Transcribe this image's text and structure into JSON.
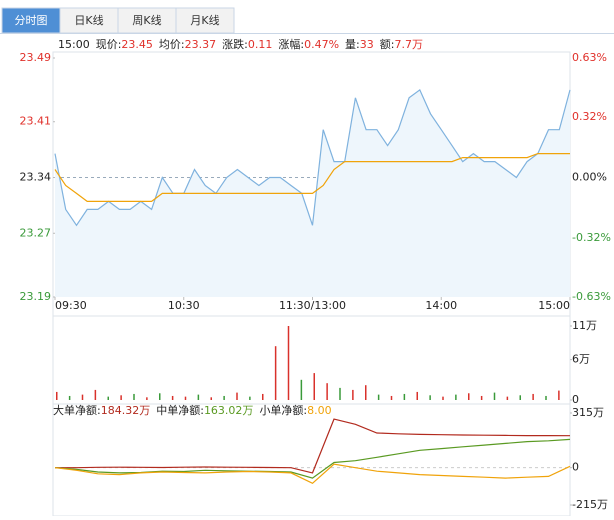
{
  "tabs": [
    "分时图",
    "日K线",
    "周K线",
    "月K线"
  ],
  "info": [
    {
      "label": "15:00"
    },
    {
      "label": "现价:",
      "value": "23.45"
    },
    {
      "label": "均价:",
      "value": "23.37"
    },
    {
      "label": "涨跌:",
      "value": "0.11"
    },
    {
      "label": "涨幅:",
      "value": "0.47%"
    },
    {
      "label": "量:",
      "value": "33"
    },
    {
      "label": "额:",
      "value": "7.7万"
    }
  ],
  "chart_data": [
    {
      "type": "line",
      "xlim": [
        0,
        240
      ],
      "xticks": [
        {
          "value": 0,
          "label": "09:30"
        },
        {
          "value": 60,
          "label": "10:30"
        },
        {
          "value": 120,
          "label": "11:30/13:00"
        },
        {
          "value": 180,
          "label": "14:00"
        },
        {
          "value": 240,
          "label": "15:00"
        }
      ],
      "ylim": [
        23.19,
        23.49
      ],
      "yticks": [
        23.19,
        23.27,
        23.34,
        23.41,
        23.49
      ],
      "y2lim": [
        -0.63,
        0.63
      ],
      "y2ticks": [
        {
          "value": -0.63,
          "label": "-0.63%"
        },
        {
          "value": -0.32,
          "label": "-0.32%"
        },
        {
          "value": 0,
          "label": "0.00%"
        },
        {
          "value": 0.32,
          "label": "0.32%"
        },
        {
          "value": 0.63,
          "label": "0.63%"
        }
      ],
      "x": [
        0,
        5,
        10,
        15,
        20,
        25,
        30,
        35,
        40,
        45,
        50,
        55,
        60,
        65,
        70,
        75,
        80,
        85,
        90,
        95,
        100,
        105,
        110,
        115,
        120,
        125,
        130,
        135,
        140,
        145,
        150,
        155,
        160,
        165,
        170,
        175,
        180,
        185,
        190,
        195,
        200,
        205,
        210,
        215,
        220,
        225,
        230,
        235,
        240
      ],
      "series": [
        {
          "color": "#7fb2de",
          "fill": "#eef6fc",
          "values": [
            23.37,
            23.3,
            23.28,
            23.3,
            23.3,
            23.31,
            23.3,
            23.3,
            23.31,
            23.3,
            23.34,
            23.32,
            23.32,
            23.35,
            23.33,
            23.32,
            23.34,
            23.35,
            23.34,
            23.33,
            23.34,
            23.34,
            23.33,
            23.32,
            23.28,
            23.4,
            23.36,
            23.36,
            23.44,
            23.4,
            23.4,
            23.38,
            23.4,
            23.44,
            23.45,
            23.42,
            23.4,
            23.38,
            23.36,
            23.37,
            23.36,
            23.36,
            23.35,
            23.34,
            23.36,
            23.37,
            23.4,
            23.4,
            23.45
          ]
        },
        {
          "color": "#f0a30a",
          "values": [
            23.35,
            23.33,
            23.32,
            23.31,
            23.31,
            23.31,
            23.31,
            23.31,
            23.31,
            23.31,
            23.32,
            23.32,
            23.32,
            23.32,
            23.32,
            23.32,
            23.32,
            23.32,
            23.32,
            23.32,
            23.32,
            23.32,
            23.32,
            23.32,
            23.32,
            23.33,
            23.35,
            23.36,
            23.36,
            23.36,
            23.36,
            23.36,
            23.36,
            23.36,
            23.36,
            23.36,
            23.36,
            23.36,
            23.365,
            23.365,
            23.365,
            23.365,
            23.365,
            23.365,
            23.365,
            23.37,
            23.37,
            23.37,
            23.37
          ]
        }
      ]
    },
    {
      "type": "bar",
      "xlim": [
        0,
        240
      ],
      "ylim": [
        0,
        11
      ],
      "yticks": [
        0,
        {
          "value": 6,
          "label": "6万"
        },
        {
          "value": 11,
          "label": "11万"
        }
      ],
      "x": [
        0,
        6,
        12,
        18,
        24,
        30,
        36,
        42,
        48,
        54,
        60,
        66,
        72,
        78,
        84,
        90,
        96,
        102,
        108,
        114,
        120,
        126,
        132,
        138,
        144,
        150,
        156,
        162,
        168,
        174,
        180,
        186,
        192,
        198,
        204,
        210,
        216,
        222,
        228,
        234
      ],
      "values": [
        1.2,
        0.6,
        0.8,
        1.5,
        0.5,
        0.7,
        0.9,
        0.4,
        1.0,
        0.6,
        0.5,
        0.8,
        0.4,
        0.6,
        1.1,
        0.5,
        0.9,
        8.0,
        11.0,
        3.0,
        4.0,
        2.5,
        1.8,
        1.5,
        2.2,
        0.8,
        0.6,
        0.9,
        1.2,
        0.7,
        0.5,
        0.8,
        1.0,
        0.6,
        1.1,
        0.5,
        0.7,
        0.9,
        0.6,
        1.4
      ],
      "colors": [
        "#d9312b",
        "#3a9a3a",
        "#d9312b",
        "#d9312b",
        "#3a9a3a",
        "#d9312b",
        "#3a9a3a",
        "#d9312b",
        "#3a9a3a",
        "#d9312b",
        "#d9312b",
        "#3a9a3a",
        "#d9312b",
        "#3a9a3a",
        "#d9312b",
        "#3a9a3a",
        "#d9312b",
        "#d9312b",
        "#d9312b",
        "#3a9a3a",
        "#d9312b",
        "#d9312b",
        "#3a9a3a",
        "#d9312b",
        "#d9312b",
        "#3a9a3a",
        "#d9312b",
        "#3a9a3a",
        "#d9312b",
        "#3a9a3a",
        "#d9312b",
        "#3a9a3a",
        "#d9312b",
        "#d9312b",
        "#3a9a3a",
        "#d9312b",
        "#3a9a3a",
        "#d9312b",
        "#3a9a3a",
        "#d9312b"
      ]
    },
    {
      "type": "line",
      "xlim": [
        0,
        240
      ],
      "ylim": [
        -215,
        315
      ],
      "yticks": [
        {
          "value": -215,
          "label": "-215万"
        },
        0,
        {
          "value": 315,
          "label": "315万"
        }
      ],
      "x": [
        0,
        10,
        20,
        30,
        40,
        50,
        60,
        70,
        80,
        90,
        100,
        110,
        120,
        130,
        140,
        150,
        160,
        170,
        180,
        190,
        200,
        210,
        220,
        230,
        240
      ],
      "series": [
        {
          "name": "大单净额:",
          "value_label": "184.32万",
          "color": "#b22a1e",
          "values": [
            0,
            0,
            2,
            3,
            2,
            1,
            3,
            4,
            3,
            2,
            1,
            0,
            -30,
            280,
            250,
            200,
            195,
            192,
            190,
            188,
            187,
            186,
            185,
            185,
            184.32
          ]
        },
        {
          "name": "中单净额:",
          "value_label": "163.02万",
          "color": "#5a9a22",
          "values": [
            0,
            -10,
            -25,
            -30,
            -28,
            -20,
            -22,
            -15,
            -18,
            -20,
            -22,
            -25,
            -60,
            30,
            40,
            60,
            80,
            100,
            110,
            120,
            130,
            140,
            150,
            155,
            163.02
          ]
        },
        {
          "name": "小单净额:",
          "value_label": "8.00",
          "color": "#f0a30a",
          "values": [
            0,
            -15,
            -35,
            -40,
            -30,
            -25,
            -28,
            -30,
            -25,
            -22,
            -25,
            -30,
            -90,
            20,
            0,
            -20,
            -30,
            -40,
            -45,
            -50,
            -55,
            -60,
            -55,
            -50,
            8
          ]
        }
      ]
    }
  ]
}
